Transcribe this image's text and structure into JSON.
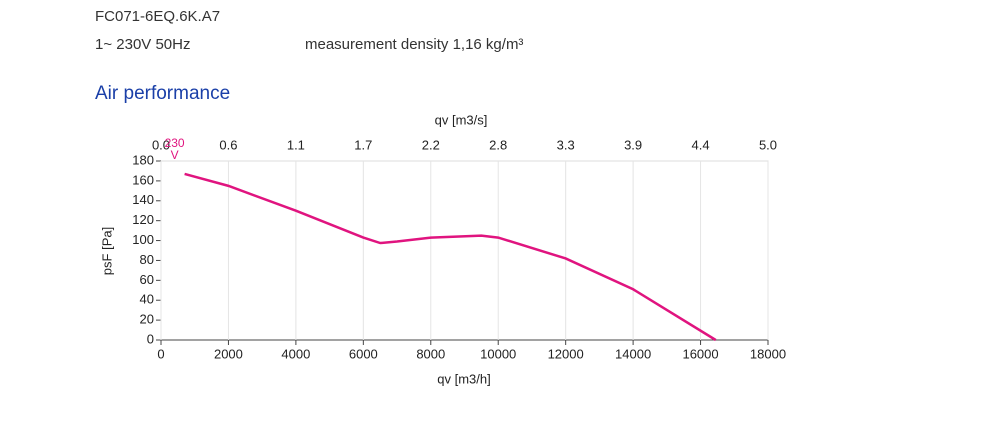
{
  "header": {
    "model": "FC071-6EQ.6K.A7",
    "supply": "1~ 230V 50Hz",
    "density": "measurement density 1,16 kg/m³"
  },
  "section_title": "Air performance",
  "chart_data": {
    "type": "line",
    "xlabel": "qv [m3/h]",
    "ylabel": "psF [Pa]",
    "x2label": "qv [m3/s]",
    "x": [
      700,
      2000,
      4000,
      6000,
      6500,
      7000,
      8000,
      9500,
      10000,
      12000,
      14000,
      16450
    ],
    "series": [
      {
        "name": "230 V",
        "color": "#e0147f",
        "values": [
          167,
          155,
          130,
          103,
          97.5,
          99,
          103,
          105,
          103,
          82,
          51,
          0
        ]
      }
    ],
    "xlim": [
      0,
      18000
    ],
    "xticks": [
      0,
      2000,
      4000,
      6000,
      8000,
      10000,
      12000,
      14000,
      16000,
      18000
    ],
    "x2lim": [
      0,
      5.0
    ],
    "x2ticks": [
      {
        "value": 0,
        "label": "0.0"
      },
      {
        "value": 0.5556,
        "label": "0.6"
      },
      {
        "value": 1.1111,
        "label": "1.1"
      },
      {
        "value": 1.6667,
        "label": "1.7"
      },
      {
        "value": 2.2222,
        "label": "2.2"
      },
      {
        "value": 2.7778,
        "label": "2.8"
      },
      {
        "value": 3.3333,
        "label": "3.3"
      },
      {
        "value": 3.8889,
        "label": "3.9"
      },
      {
        "value": 4.4444,
        "label": "4.4"
      },
      {
        "value": 5.0,
        "label": "5.0"
      }
    ],
    "ylim": [
      0,
      180
    ],
    "yticks": [
      0,
      20,
      40,
      60,
      80,
      100,
      120,
      140,
      160,
      180
    ],
    "grid": true
  }
}
